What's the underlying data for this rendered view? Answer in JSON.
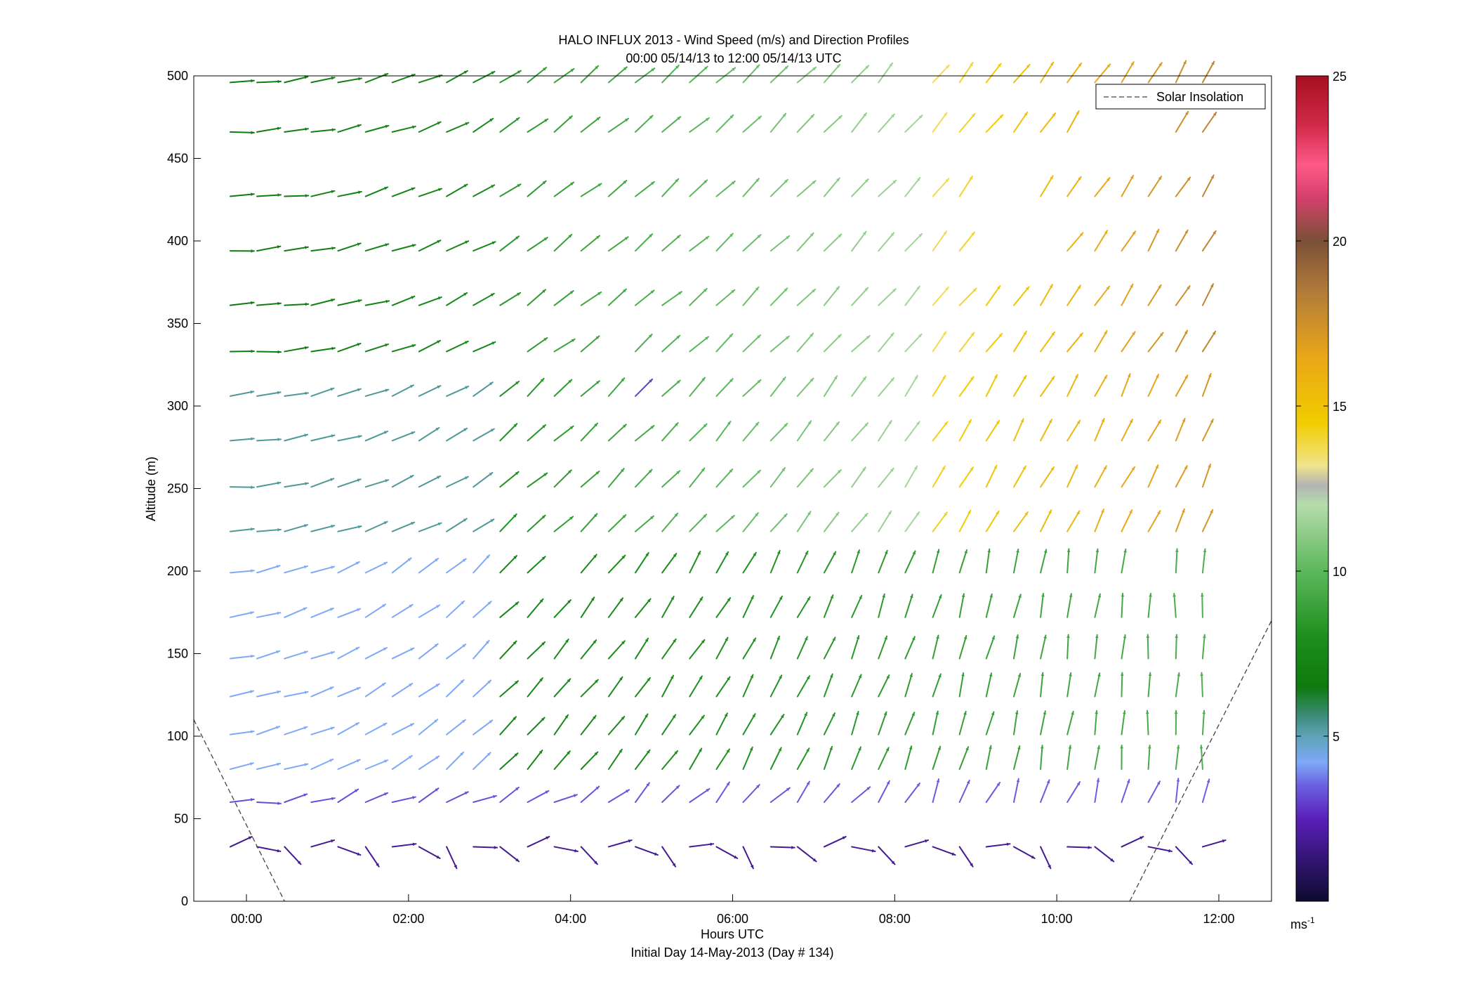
{
  "chart_data": {
    "type": "quiver",
    "title": "HALO INFLUX 2013 - Wind Speed (m/s) and Direction Profiles",
    "subtitle": "00:00 05/14/13 to 12:00 05/14/13  UTC",
    "xlabel": "Hours UTC",
    "xlabel2": "Initial Day 14-May-2013 (Day # 134)",
    "ylabel": "Altitude (m)",
    "xlim": [
      -0.65,
      12.65
    ],
    "ylim": [
      0,
      500
    ],
    "xticks": [
      0,
      2,
      4,
      6,
      8,
      10,
      12
    ],
    "xtick_labels": [
      "00:00",
      "02:00",
      "04:00",
      "06:00",
      "08:00",
      "10:00",
      "12:00"
    ],
    "yticks": [
      0,
      50,
      100,
      150,
      200,
      250,
      300,
      350,
      400,
      450,
      500
    ],
    "ytick_labels": [
      "0",
      "50",
      "100",
      "150",
      "200",
      "250",
      "300",
      "350",
      "400",
      "450",
      "500"
    ],
    "grid": false,
    "legend": {
      "label": "Solar Insolation",
      "placement": "top-right"
    },
    "colorbar": {
      "range": [
        0,
        25
      ],
      "ticks": [
        5,
        10,
        15,
        20,
        25
      ],
      "tick_labels": [
        "5",
        "10",
        "15",
        "20",
        "25"
      ],
      "unit_label": "ms",
      "unit_exponent": "-1",
      "stops": [
        {
          "v": 0.0,
          "c": "#0b0b2e"
        },
        {
          "v": 2.5,
          "c": "#5b1fb8"
        },
        {
          "v": 3.5,
          "c": "#6a60e0"
        },
        {
          "v": 4.2,
          "c": "#7ea8f8"
        },
        {
          "v": 5.0,
          "c": "#5fa3b8"
        },
        {
          "v": 5.6,
          "c": "#3d8c7a"
        },
        {
          "v": 6.5,
          "c": "#0d7a0d"
        },
        {
          "v": 8.0,
          "c": "#1d8f1d"
        },
        {
          "v": 10.0,
          "c": "#5cb85c"
        },
        {
          "v": 12.0,
          "c": "#b5dcab"
        },
        {
          "v": 12.6,
          "c": "#b4b4b4"
        },
        {
          "v": 13.2,
          "c": "#f0e48a"
        },
        {
          "v": 14.5,
          "c": "#f2cc00"
        },
        {
          "v": 16.5,
          "c": "#e8a618"
        },
        {
          "v": 18.5,
          "c": "#b07a3a"
        },
        {
          "v": 20.0,
          "c": "#7a5038"
        },
        {
          "v": 21.3,
          "c": "#d4406a"
        },
        {
          "v": 22.3,
          "c": "#ff5a88"
        },
        {
          "v": 23.5,
          "c": "#d02a4a"
        },
        {
          "v": 25.0,
          "c": "#a80f1f"
        }
      ]
    },
    "solar_insolation": [
      {
        "x": [
          -0.65,
          0.47
        ],
        "y": [
          110,
          0
        ]
      },
      {
        "x": [
          10.9,
          12.65
        ],
        "y": [
          0,
          170
        ]
      }
    ],
    "altitudes": [
      33,
      60,
      80,
      101,
      124,
      147,
      172,
      199,
      224,
      251,
      279,
      306,
      333,
      361,
      394,
      427,
      466,
      496
    ],
    "times": [
      -0.2,
      0.13,
      0.47,
      0.8,
      1.13,
      1.47,
      1.8,
      2.13,
      2.47,
      2.8,
      3.13,
      3.47,
      3.8,
      4.13,
      4.47,
      4.8,
      5.13,
      5.47,
      5.8,
      6.13,
      6.47,
      6.8,
      7.13,
      7.47,
      7.8,
      8.13,
      8.47,
      8.8,
      9.13,
      9.47,
      9.8,
      10.13,
      10.47,
      10.8,
      11.13,
      11.47,
      11.8
    ],
    "regions": [
      {
        "z": [
          0,
          35
        ],
        "t": [
          -1,
          13
        ],
        "s0": 1.8,
        "s1": 1.8,
        "d0": 290,
        "d1": 290
      },
      {
        "z": [
          45,
          70
        ],
        "t": [
          -1,
          13
        ],
        "s0": 3.2,
        "s1": 3.5,
        "d0": 260,
        "d1": 190
      },
      {
        "z": [
          70,
          215
        ],
        "t": [
          -1,
          3.0
        ],
        "s0": 4.2,
        "s1": 4.2,
        "d0": 260,
        "d1": 225
      },
      {
        "z": [
          70,
          215
        ],
        "t": [
          3.0,
          13
        ],
        "s0": 7.3,
        "s1": 9.5,
        "d0": 225,
        "d1": 180
      },
      {
        "z": [
          215,
          320
        ],
        "t": [
          -1,
          3.0
        ],
        "s0": 5.3,
        "s1": 5.3,
        "d0": 265,
        "d1": 235
      },
      {
        "z": [
          215,
          320
        ],
        "t": [
          3.0,
          8.4
        ],
        "s0": 8.0,
        "s1": 11.8,
        "d0": 230,
        "d1": 215
      },
      {
        "z": [
          215,
          320
        ],
        "t": [
          8.4,
          13
        ],
        "s0": 14.2,
        "s1": 17.2,
        "d0": 212,
        "d1": 205
      },
      {
        "z": [
          320,
          510
        ],
        "t": [
          -1,
          3.0
        ],
        "s0": 6.6,
        "s1": 7.6,
        "d0": 268,
        "d1": 240
      },
      {
        "z": [
          320,
          510
        ],
        "t": [
          3.0,
          8.4
        ],
        "s0": 8.3,
        "s1": 11.8,
        "d0": 235,
        "d1": 220
      },
      {
        "z": [
          320,
          510
        ],
        "t": [
          8.4,
          13
        ],
        "s0": 13.6,
        "s1": 18.0,
        "d0": 220,
        "d1": 210
      }
    ],
    "overrides": [
      {
        "t": 4.8,
        "z": 306,
        "s": 3.0,
        "d": 225
      }
    ],
    "missing": [
      [
        3.13,
        333
      ],
      [
        4.47,
        333
      ],
      [
        3.8,
        199
      ],
      [
        9.13,
        394
      ],
      [
        9.47,
        394
      ],
      [
        9.8,
        394
      ],
      [
        9.13,
        427
      ],
      [
        9.47,
        427
      ],
      [
        8.13,
        496
      ],
      [
        10.47,
        466
      ],
      [
        10.8,
        466
      ],
      [
        11.13,
        466
      ],
      [
        11.13,
        199
      ]
    ]
  }
}
